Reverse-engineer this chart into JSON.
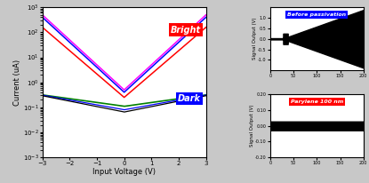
{
  "left_plot": {
    "xlabel": "Input Voltage (V)",
    "ylabel": "Current (uA)",
    "xlim": [
      -3,
      3
    ],
    "ylim_log": [
      0.001,
      1000
    ],
    "bright_label": "Bright",
    "dark_label": "Dark",
    "bg_color": "#ffffff"
  },
  "top_right": {
    "title": "Before passivation",
    "title_bg": "blue",
    "title_color": "white",
    "ylabel": "Signal Output (V)",
    "ylim": [
      -1.5,
      1.5
    ],
    "yticks": [
      -1.0,
      -0.5,
      0.0,
      0.5,
      1.0
    ],
    "xlim": [
      0,
      200
    ],
    "xticks": [
      0,
      50,
      100,
      150,
      200
    ],
    "bg_color": "#ffffff"
  },
  "bottom_right": {
    "title": "Parylene 100 nm",
    "title_bg": "red",
    "title_color": "white",
    "ylabel": "Signal Output (V)",
    "ylim": [
      -0.2,
      0.2
    ],
    "yticks": [
      -0.2,
      -0.1,
      0.0,
      0.1,
      0.2
    ],
    "xlim": [
      0,
      200
    ],
    "xticks": [
      0,
      50,
      100,
      150,
      200
    ],
    "bg_color": "#ffffff"
  },
  "fig_bg": "#c8c8c8"
}
